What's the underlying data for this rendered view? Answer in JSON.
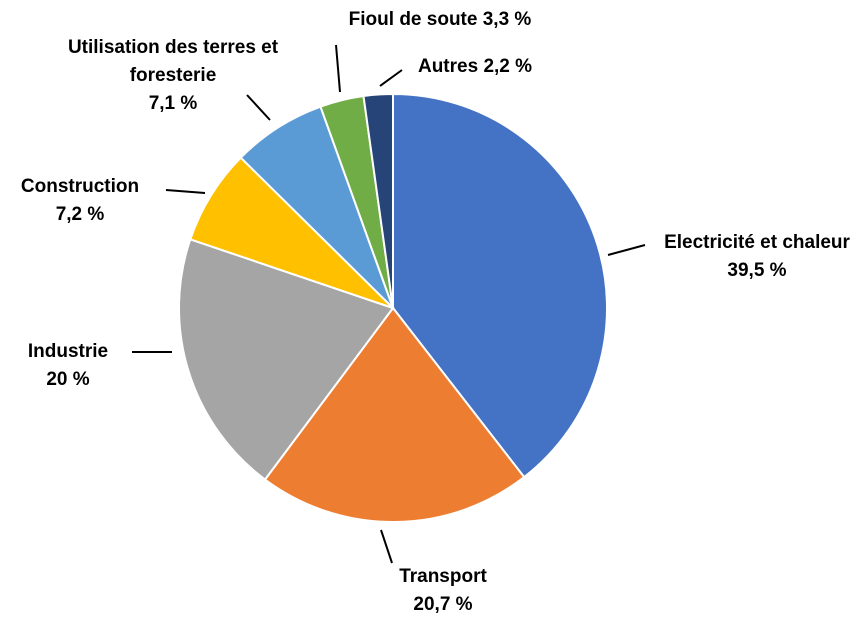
{
  "chart_data": {
    "type": "pie",
    "categories": [
      "Electricité et chaleur",
      "Transport",
      "Industrie",
      "Construction",
      "Utilisation des terres et foresterie",
      "Fioul de soute",
      "Autres"
    ],
    "values": [
      39.5,
      20.7,
      20,
      7.2,
      7.1,
      3.3,
      2.2
    ],
    "value_labels": [
      "39,5 %",
      "20,7 %",
      "20 %",
      "7,2 %",
      "7,1 %",
      "3,3 %",
      "2,2 %"
    ],
    "colors": [
      "#4472c4",
      "#ed7d31",
      "#a5a5a5",
      "#ffc000",
      "#5b9bd5",
      "#70ad47",
      "#264478"
    ]
  }
}
